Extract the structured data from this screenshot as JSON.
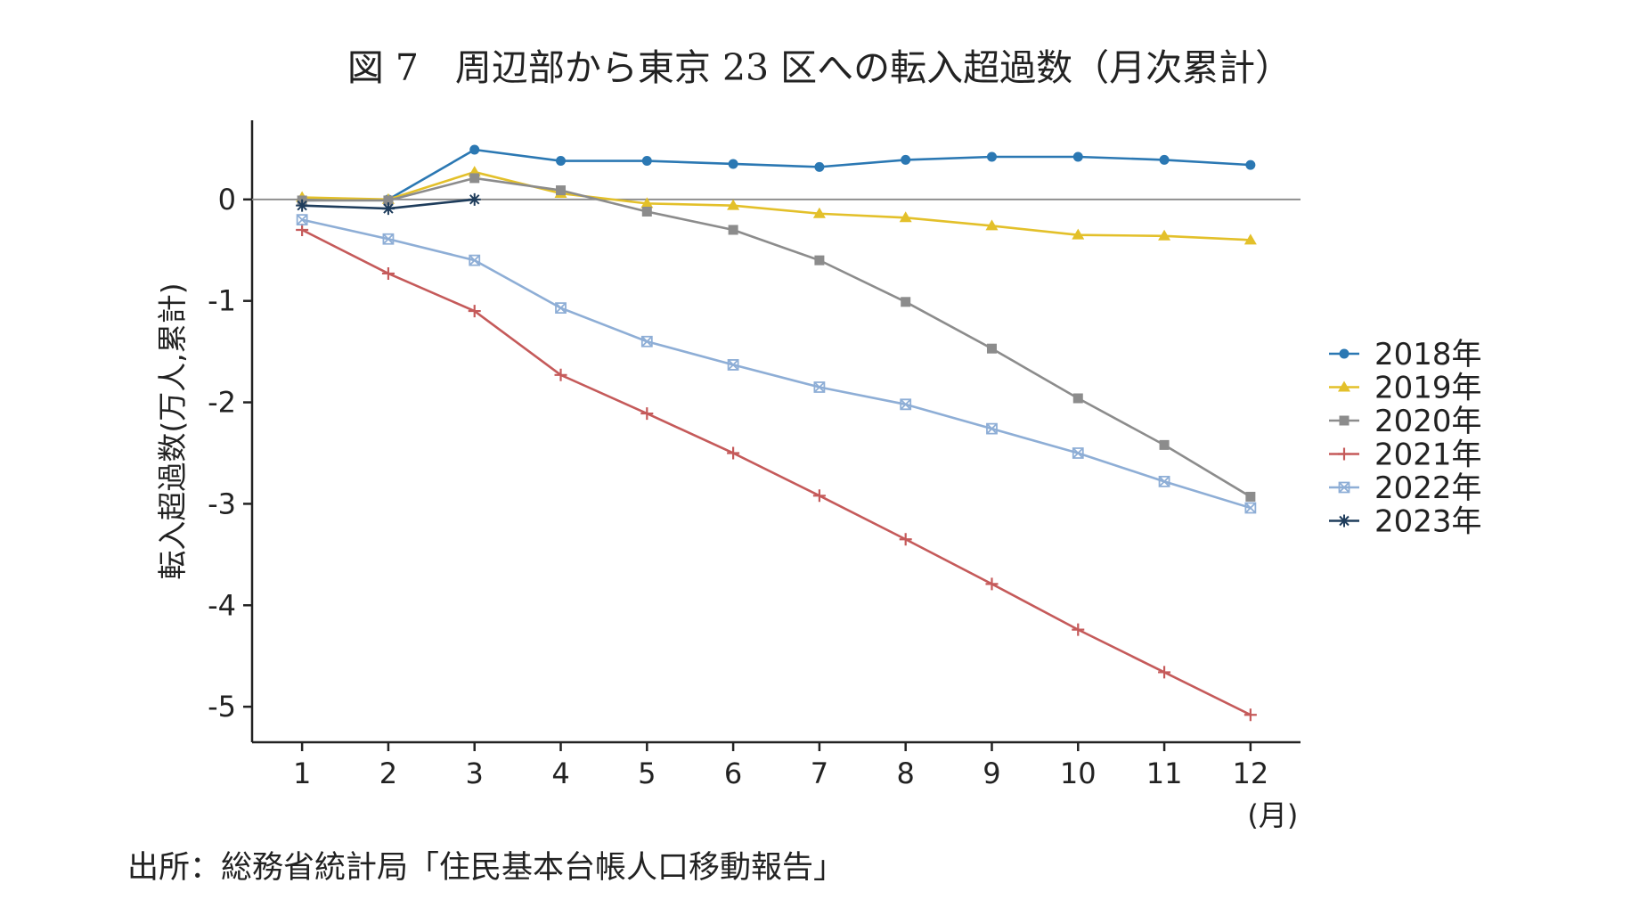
{
  "title": "図 7　周辺部から東京 23 区への転入超過数（月次累計）",
  "source": "出所：総務省統計局「住民基本台帳人口移動報告」",
  "chart_data": {
    "type": "line",
    "xlabel": "(月)",
    "ylabel": "転入超過数(万人,累計)",
    "x": [
      1,
      2,
      3,
      4,
      5,
      6,
      7,
      8,
      9,
      10,
      11,
      12
    ],
    "x_tick_labels": [
      "1",
      "2",
      "3",
      "4",
      "5",
      "6",
      "7",
      "8",
      "9",
      "10",
      "11",
      "12"
    ],
    "y_ticks": [
      0,
      -1,
      -2,
      -3,
      -4,
      -5
    ],
    "y_tick_labels": [
      "0",
      "-1",
      "-2",
      "-3",
      "-4",
      "-5"
    ],
    "ylim": [
      -5.35,
      0.78
    ],
    "xlim": [
      0.42,
      12.58
    ],
    "zero_line": true,
    "grid": false,
    "legend_position": "right",
    "series": [
      {
        "name": "2018年",
        "color": "#2b78b3",
        "marker": "circle",
        "values": [
          -0.01,
          0.0,
          0.49,
          0.38,
          0.38,
          0.35,
          0.32,
          0.39,
          0.42,
          0.42,
          0.39,
          0.34
        ]
      },
      {
        "name": "2019年",
        "color": "#e3c02a",
        "marker": "triangle",
        "values": [
          0.02,
          0.0,
          0.27,
          0.06,
          -0.04,
          -0.06,
          -0.14,
          -0.18,
          -0.26,
          -0.35,
          -0.36,
          -0.4
        ]
      },
      {
        "name": "2020年",
        "color": "#8c8c8c",
        "marker": "square",
        "values": [
          -0.01,
          -0.01,
          0.21,
          0.09,
          -0.12,
          -0.3,
          -0.6,
          -1.01,
          -1.47,
          -1.96,
          -2.42,
          -2.93
        ]
      },
      {
        "name": "2021年",
        "color": "#c55a5a",
        "marker": "plus",
        "values": [
          -0.3,
          -0.73,
          -1.1,
          -1.73,
          -2.11,
          -2.5,
          -2.92,
          -3.35,
          -3.79,
          -4.24,
          -4.66,
          -5.08
        ]
      },
      {
        "name": "2022年",
        "color": "#8eaed6",
        "marker": "boxx",
        "values": [
          -0.2,
          -0.39,
          -0.6,
          -1.07,
          -1.4,
          -1.63,
          -1.85,
          -2.02,
          -2.26,
          -2.5,
          -2.78,
          -3.04
        ]
      },
      {
        "name": "2023年",
        "color": "#1f3d5c",
        "marker": "asterisk",
        "values": [
          -0.06,
          -0.09,
          0.0,
          null,
          null,
          null,
          null,
          null,
          null,
          null,
          null,
          null
        ]
      }
    ]
  }
}
